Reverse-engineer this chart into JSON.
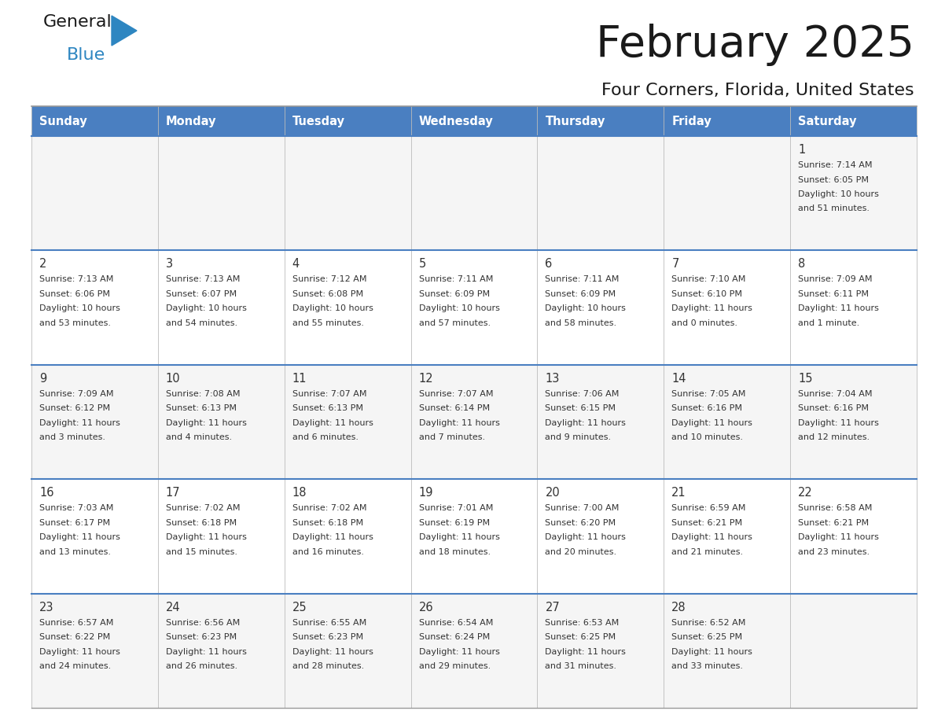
{
  "title": "February 2025",
  "subtitle": "Four Corners, Florida, United States",
  "header_bg_color": "#4A7FC1",
  "header_text_color": "#FFFFFF",
  "day_names": [
    "Sunday",
    "Monday",
    "Tuesday",
    "Wednesday",
    "Thursday",
    "Friday",
    "Saturday"
  ],
  "row_bg_colors": [
    "#F5F5F5",
    "#FFFFFF",
    "#F5F5F5",
    "#FFFFFF",
    "#F5F5F5"
  ],
  "cell_text_color": "#333333",
  "day_num_color": "#333333",
  "border_color": "#4A7FC1",
  "logo_general_color": "#1a1a1a",
  "logo_blue_color": "#2E86C1",
  "calendar": [
    [
      null,
      null,
      null,
      null,
      null,
      null,
      {
        "day": "1",
        "sunrise": "7:14 AM",
        "sunset": "6:05 PM",
        "daylight": "10 hours",
        "daylight2": "and 51 minutes."
      }
    ],
    [
      {
        "day": "2",
        "sunrise": "7:13 AM",
        "sunset": "6:06 PM",
        "daylight": "10 hours",
        "daylight2": "and 53 minutes."
      },
      {
        "day": "3",
        "sunrise": "7:13 AM",
        "sunset": "6:07 PM",
        "daylight": "10 hours",
        "daylight2": "and 54 minutes."
      },
      {
        "day": "4",
        "sunrise": "7:12 AM",
        "sunset": "6:08 PM",
        "daylight": "10 hours",
        "daylight2": "and 55 minutes."
      },
      {
        "day": "5",
        "sunrise": "7:11 AM",
        "sunset": "6:09 PM",
        "daylight": "10 hours",
        "daylight2": "and 57 minutes."
      },
      {
        "day": "6",
        "sunrise": "7:11 AM",
        "sunset": "6:09 PM",
        "daylight": "10 hours",
        "daylight2": "and 58 minutes."
      },
      {
        "day": "7",
        "sunrise": "7:10 AM",
        "sunset": "6:10 PM",
        "daylight": "11 hours",
        "daylight2": "and 0 minutes."
      },
      {
        "day": "8",
        "sunrise": "7:09 AM",
        "sunset": "6:11 PM",
        "daylight": "11 hours",
        "daylight2": "and 1 minute."
      }
    ],
    [
      {
        "day": "9",
        "sunrise": "7:09 AM",
        "sunset": "6:12 PM",
        "daylight": "11 hours",
        "daylight2": "and 3 minutes."
      },
      {
        "day": "10",
        "sunrise": "7:08 AM",
        "sunset": "6:13 PM",
        "daylight": "11 hours",
        "daylight2": "and 4 minutes."
      },
      {
        "day": "11",
        "sunrise": "7:07 AM",
        "sunset": "6:13 PM",
        "daylight": "11 hours",
        "daylight2": "and 6 minutes."
      },
      {
        "day": "12",
        "sunrise": "7:07 AM",
        "sunset": "6:14 PM",
        "daylight": "11 hours",
        "daylight2": "and 7 minutes."
      },
      {
        "day": "13",
        "sunrise": "7:06 AM",
        "sunset": "6:15 PM",
        "daylight": "11 hours",
        "daylight2": "and 9 minutes."
      },
      {
        "day": "14",
        "sunrise": "7:05 AM",
        "sunset": "6:16 PM",
        "daylight": "11 hours",
        "daylight2": "and 10 minutes."
      },
      {
        "day": "15",
        "sunrise": "7:04 AM",
        "sunset": "6:16 PM",
        "daylight": "11 hours",
        "daylight2": "and 12 minutes."
      }
    ],
    [
      {
        "day": "16",
        "sunrise": "7:03 AM",
        "sunset": "6:17 PM",
        "daylight": "11 hours",
        "daylight2": "and 13 minutes."
      },
      {
        "day": "17",
        "sunrise": "7:02 AM",
        "sunset": "6:18 PM",
        "daylight": "11 hours",
        "daylight2": "and 15 minutes."
      },
      {
        "day": "18",
        "sunrise": "7:02 AM",
        "sunset": "6:18 PM",
        "daylight": "11 hours",
        "daylight2": "and 16 minutes."
      },
      {
        "day": "19",
        "sunrise": "7:01 AM",
        "sunset": "6:19 PM",
        "daylight": "11 hours",
        "daylight2": "and 18 minutes."
      },
      {
        "day": "20",
        "sunrise": "7:00 AM",
        "sunset": "6:20 PM",
        "daylight": "11 hours",
        "daylight2": "and 20 minutes."
      },
      {
        "day": "21",
        "sunrise": "6:59 AM",
        "sunset": "6:21 PM",
        "daylight": "11 hours",
        "daylight2": "and 21 minutes."
      },
      {
        "day": "22",
        "sunrise": "6:58 AM",
        "sunset": "6:21 PM",
        "daylight": "11 hours",
        "daylight2": "and 23 minutes."
      }
    ],
    [
      {
        "day": "23",
        "sunrise": "6:57 AM",
        "sunset": "6:22 PM",
        "daylight": "11 hours",
        "daylight2": "and 24 minutes."
      },
      {
        "day": "24",
        "sunrise": "6:56 AM",
        "sunset": "6:23 PM",
        "daylight": "11 hours",
        "daylight2": "and 26 minutes."
      },
      {
        "day": "25",
        "sunrise": "6:55 AM",
        "sunset": "6:23 PM",
        "daylight": "11 hours",
        "daylight2": "and 28 minutes."
      },
      {
        "day": "26",
        "sunrise": "6:54 AM",
        "sunset": "6:24 PM",
        "daylight": "11 hours",
        "daylight2": "and 29 minutes."
      },
      {
        "day": "27",
        "sunrise": "6:53 AM",
        "sunset": "6:25 PM",
        "daylight": "11 hours",
        "daylight2": "and 31 minutes."
      },
      {
        "day": "28",
        "sunrise": "6:52 AM",
        "sunset": "6:25 PM",
        "daylight": "11 hours",
        "daylight2": "and 33 minutes."
      },
      null
    ]
  ],
  "fig_width": 11.88,
  "fig_height": 9.18,
  "dpi": 100
}
